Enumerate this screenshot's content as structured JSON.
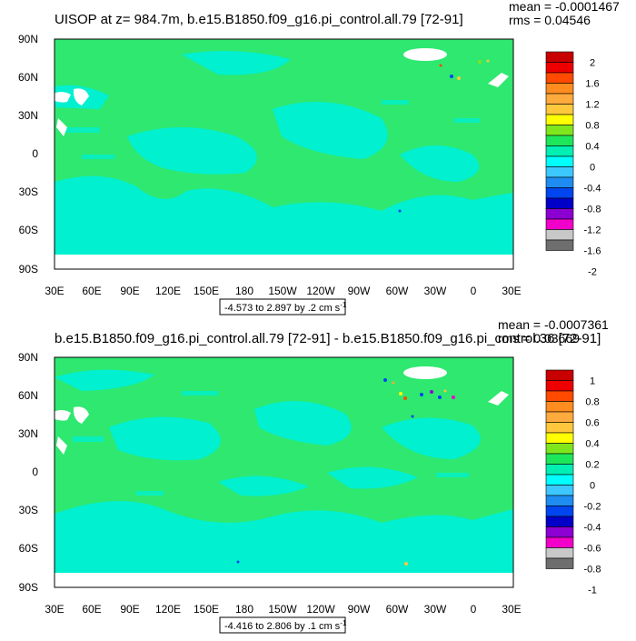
{
  "chart_data": [
    {
      "type": "heatmap",
      "title": "UISOP at z= 984.7m, b.e15.B1850.f09_g16.pi_control.all.79 [72-91]",
      "stats": {
        "mean": "mean = -0.0001467",
        "rms": "rms = 0.04546"
      },
      "x_ticks": [
        "30E",
        "60E",
        "90E",
        "120E",
        "150E",
        "180",
        "150W",
        "120W",
        "90W",
        "60W",
        "30W",
        "0",
        "30E"
      ],
      "y_ticks": [
        "90N",
        "60N",
        "30N",
        "0",
        "30S",
        "60S",
        "90S"
      ],
      "colorbar_labels": [
        "2",
        "1.6",
        "1.2",
        "0.8",
        "0.4",
        "0",
        "-0.4",
        "-0.8",
        "-1.2",
        "-1.6",
        "-2"
      ],
      "range_note": "-4.573 to 2.897 by .2 cm s",
      "range_unit_exp": "-1"
    },
    {
      "type": "heatmap",
      "title": "b.e15.B1850.f09_g16.pi_control.all.79 [72-91] - b.e15.B1850.f09_g16.pi_control.36 [72-91]",
      "stats": {
        "mean": "mean = -0.0007361",
        "rms": "rms = 0.03669"
      },
      "x_ticks": [
        "30E",
        "60E",
        "90E",
        "120E",
        "150E",
        "180",
        "150W",
        "120W",
        "90W",
        "60W",
        "30W",
        "0",
        "30E"
      ],
      "y_ticks": [
        "90N",
        "60N",
        "30N",
        "0",
        "30S",
        "60S",
        "90S"
      ],
      "colorbar_labels": [
        "1",
        "0.8",
        "0.6",
        "0.4",
        "0.2",
        "0",
        "-0.2",
        "-0.4",
        "-0.6",
        "-0.8",
        "-1"
      ],
      "range_note": "-4.416 to 2.806 by .1 cm s",
      "range_unit_exp": "-1"
    }
  ],
  "colors": {
    "palette": [
      "#c80000",
      "#ee0000",
      "#ff4a00",
      "#ff8c1e",
      "#ffaa3c",
      "#ffc83c",
      "#ffff00",
      "#7fe61e",
      "#1ee65a",
      "#00f0b4",
      "#00ffff",
      "#3cc8ff",
      "#1e8cf0",
      "#0046f0",
      "#0000c8",
      "#8c00d2",
      "#f000c8",
      "#c8c8c8",
      "#6e6e6e"
    ],
    "land": "#2ee870",
    "ocean_patch": "#00f0d0",
    "missing": "#ffffff"
  }
}
